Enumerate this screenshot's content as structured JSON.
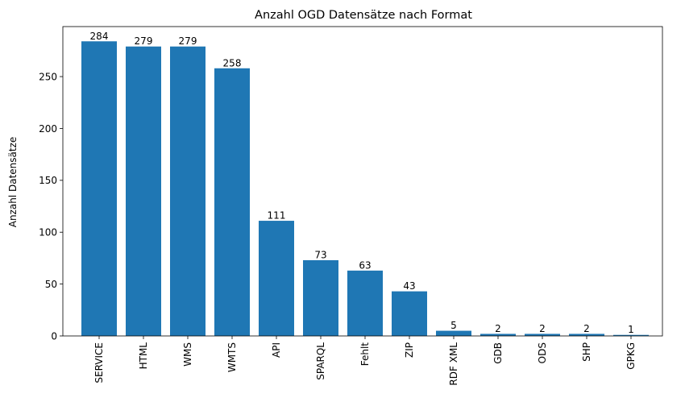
{
  "chart_data": {
    "type": "bar",
    "title": "Anzahl OGD Datensätze nach Format",
    "xlabel": "",
    "ylabel": "Anzahl Datensätze",
    "categories": [
      "SERVICE",
      "HTML",
      "WMS",
      "WMTS",
      "API",
      "SPARQL",
      "Fehlt",
      "ZIP",
      "RDF XML",
      "GDB",
      "ODS",
      "SHP",
      "GPKG"
    ],
    "values": [
      284,
      279,
      279,
      258,
      111,
      73,
      63,
      43,
      5,
      2,
      2,
      2,
      1
    ],
    "data_labels": [
      "284",
      "279",
      "279",
      "258",
      "111",
      "73",
      "63",
      "43",
      "5",
      "2",
      "2",
      "2",
      "1"
    ],
    "yticks": [
      0,
      50,
      100,
      150,
      200,
      250
    ],
    "ylim": [
      0,
      298.2
    ],
    "grid": false,
    "bar_color": "#1f77b4"
  }
}
